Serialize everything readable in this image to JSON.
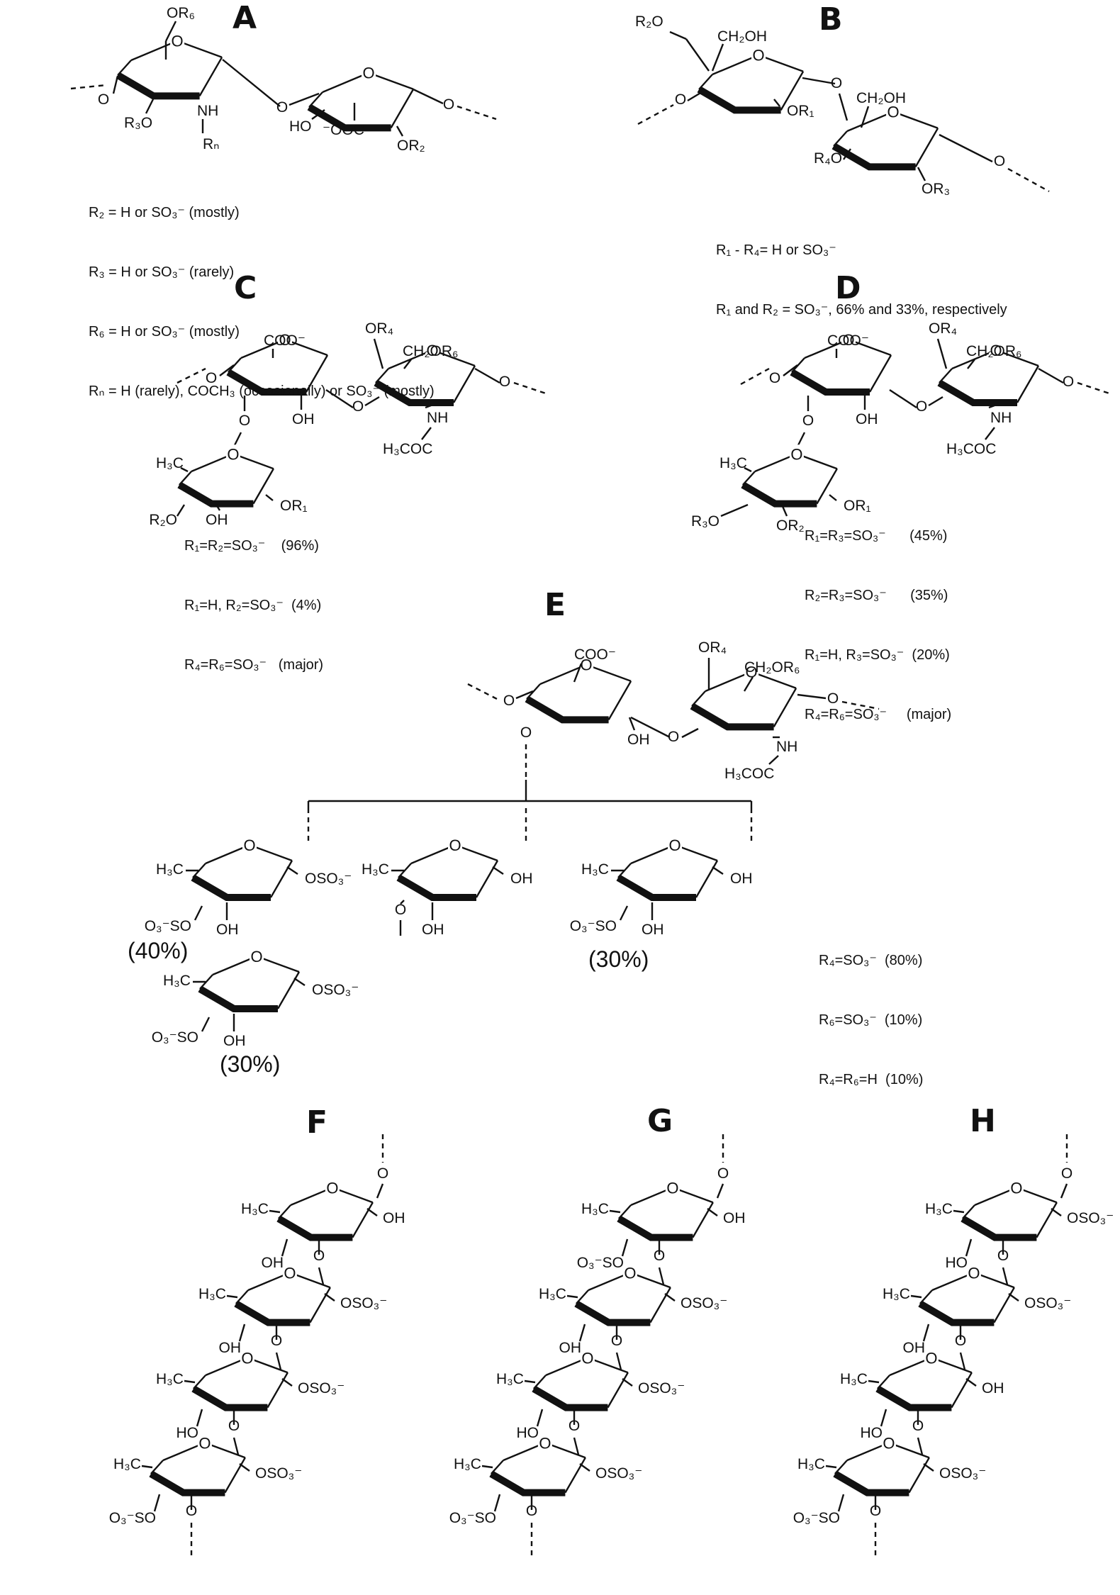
{
  "panels": {
    "A": {
      "letter": "A",
      "notes": [
        "R₂ = H or SO₃⁻ (mostly)",
        "R₃ = H or SO₃⁻ (rarely)",
        "R₆ = H or SO₃⁻ (mostly)",
        "Rₙ = H (rarely), COCH₃ (occasionally) or SO₃⁻ (mostly)"
      ]
    },
    "B": {
      "letter": "B",
      "notes": [
        "R₁ - R₄= H or SO₃⁻",
        "R₁ and R₂ = SO₃⁻, 66% and 33%, respectively"
      ]
    },
    "C": {
      "letter": "C",
      "notes": [
        "R₁=R₂=SO₃⁻    (96%)",
        "R₁=H, R₂=SO₃⁻  (4%)",
        "R₄=R₆=SO₃⁻   (major)"
      ]
    },
    "D": {
      "letter": "D",
      "notes": [
        "R₁=R₃=SO₃⁻      (45%)",
        "R₂=R₃=SO₃⁻      (35%)",
        "R₁=H, R₃=SO₃⁻  (20%)",
        "R₄=R₆=SO₃⁻     (major)"
      ]
    },
    "E": {
      "letter": "E",
      "notes": [
        "R₄=SO₃⁻  (80%)",
        "R₆=SO₃⁻  (10%)",
        "R₄=R₆=H  (10%)"
      ],
      "pct_left": "(40%)",
      "pct_mid": "(30%)",
      "pct_right": "(30%)"
    },
    "F": {
      "letter": "F"
    },
    "G": {
      "letter": "G"
    },
    "H": {
      "letter": "H"
    }
  },
  "atoms": {
    "O": "O",
    "OH": "OH",
    "HO": "HO",
    "NH": "NH",
    "RN": "Rₙ",
    "OR1": "OR₁",
    "OR2": "OR₂",
    "OR3": "OR₃",
    "OR4": "OR₄",
    "OR6": "OR₆",
    "R2O": "R₂O",
    "R3O": "R₃O",
    "R4O": "R₄O",
    "CH2OH": "CH₂OH",
    "CH2OR6": "CH₂OR₆",
    "COO": "COO⁻",
    "OOC": "⁻OOC",
    "H3COC": "H₃COC",
    "H3C": "H₃C",
    "OSO3": "OSO₃⁻",
    "O3SO": "O₃⁻SO"
  }
}
